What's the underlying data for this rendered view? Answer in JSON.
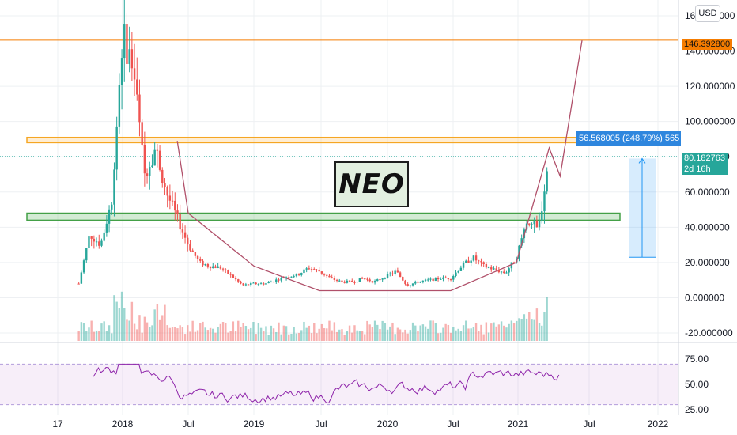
{
  "chart_data": {
    "type": "candlestick",
    "symbol": "NEO",
    "currency": "USD",
    "y_axis": {
      "ticks": [
        "160.000000",
        "140.000000",
        "120.000000",
        "100.000000",
        "80.000000",
        "60.000000",
        "40.000000",
        "20.000000",
        "0.000000",
        "-20.000000"
      ],
      "values": [
        160,
        140,
        120,
        100,
        80,
        60,
        40,
        20,
        0,
        -20
      ]
    },
    "x_axis": {
      "ticks": [
        "17",
        "2018",
        "Jul",
        "2019",
        "Jul",
        "2020",
        "Jul",
        "2021",
        "Jul",
        "2022"
      ]
    },
    "last_price": "80.182763",
    "countdown": "2d 16h",
    "target_level": "146.392800",
    "measure_label": "56.568005 (248.79%) 565",
    "resistance_zone": [
      88,
      91
    ],
    "support_zone": [
      44,
      48
    ],
    "projection_path": [
      [
        "2018-06",
        89
      ],
      [
        "2018-07",
        48
      ],
      [
        "2019-01",
        18
      ],
      [
        "2019-07",
        4
      ],
      [
        "2020-07",
        4
      ],
      [
        "2021-01",
        20
      ],
      [
        "2021-04",
        85
      ],
      [
        "2021-05",
        69
      ],
      [
        "2021-07",
        146
      ]
    ],
    "price_series": [
      [
        "2017-09",
        8
      ],
      [
        "2017-10",
        36
      ],
      [
        "2017-11",
        30
      ],
      [
        "2017-12",
        55
      ],
      [
        "2018-01",
        150
      ],
      [
        "2018-02",
        130
      ],
      [
        "2018-03",
        70
      ],
      [
        "2018-04",
        85
      ],
      [
        "2018-05",
        60
      ],
      [
        "2018-06",
        45
      ],
      [
        "2018-07",
        30
      ],
      [
        "2018-08",
        20
      ],
      [
        "2018-09",
        18
      ],
      [
        "2018-10",
        17
      ],
      [
        "2018-11",
        12
      ],
      [
        "2018-12",
        7
      ],
      [
        "2019-01",
        8
      ],
      [
        "2019-02",
        8
      ],
      [
        "2019-03",
        10
      ],
      [
        "2019-04",
        12
      ],
      [
        "2019-05",
        13
      ],
      [
        "2019-06",
        17
      ],
      [
        "2019-07",
        15
      ],
      [
        "2019-08",
        11
      ],
      [
        "2019-09",
        9
      ],
      [
        "2019-10",
        9
      ],
      [
        "2019-11",
        11
      ],
      [
        "2019-12",
        9
      ],
      [
        "2020-01",
        12
      ],
      [
        "2020-02",
        15
      ],
      [
        "2020-03",
        7
      ],
      [
        "2020-04",
        9
      ],
      [
        "2020-05",
        10
      ],
      [
        "2020-06",
        11
      ],
      [
        "2020-07",
        11
      ],
      [
        "2020-08",
        18
      ],
      [
        "2020-09",
        23
      ],
      [
        "2020-10",
        18
      ],
      [
        "2020-11",
        16
      ],
      [
        "2020-12",
        14
      ],
      [
        "2021-01",
        23
      ],
      [
        "2021-02",
        45
      ],
      [
        "2021-03",
        38
      ],
      [
        "2021-04",
        80
      ]
    ],
    "rsi": {
      "ticks": [
        "75.00",
        "50.00",
        "25.00"
      ],
      "values": [
        75,
        50,
        25
      ],
      "bands": [
        70,
        30
      ]
    }
  }
}
